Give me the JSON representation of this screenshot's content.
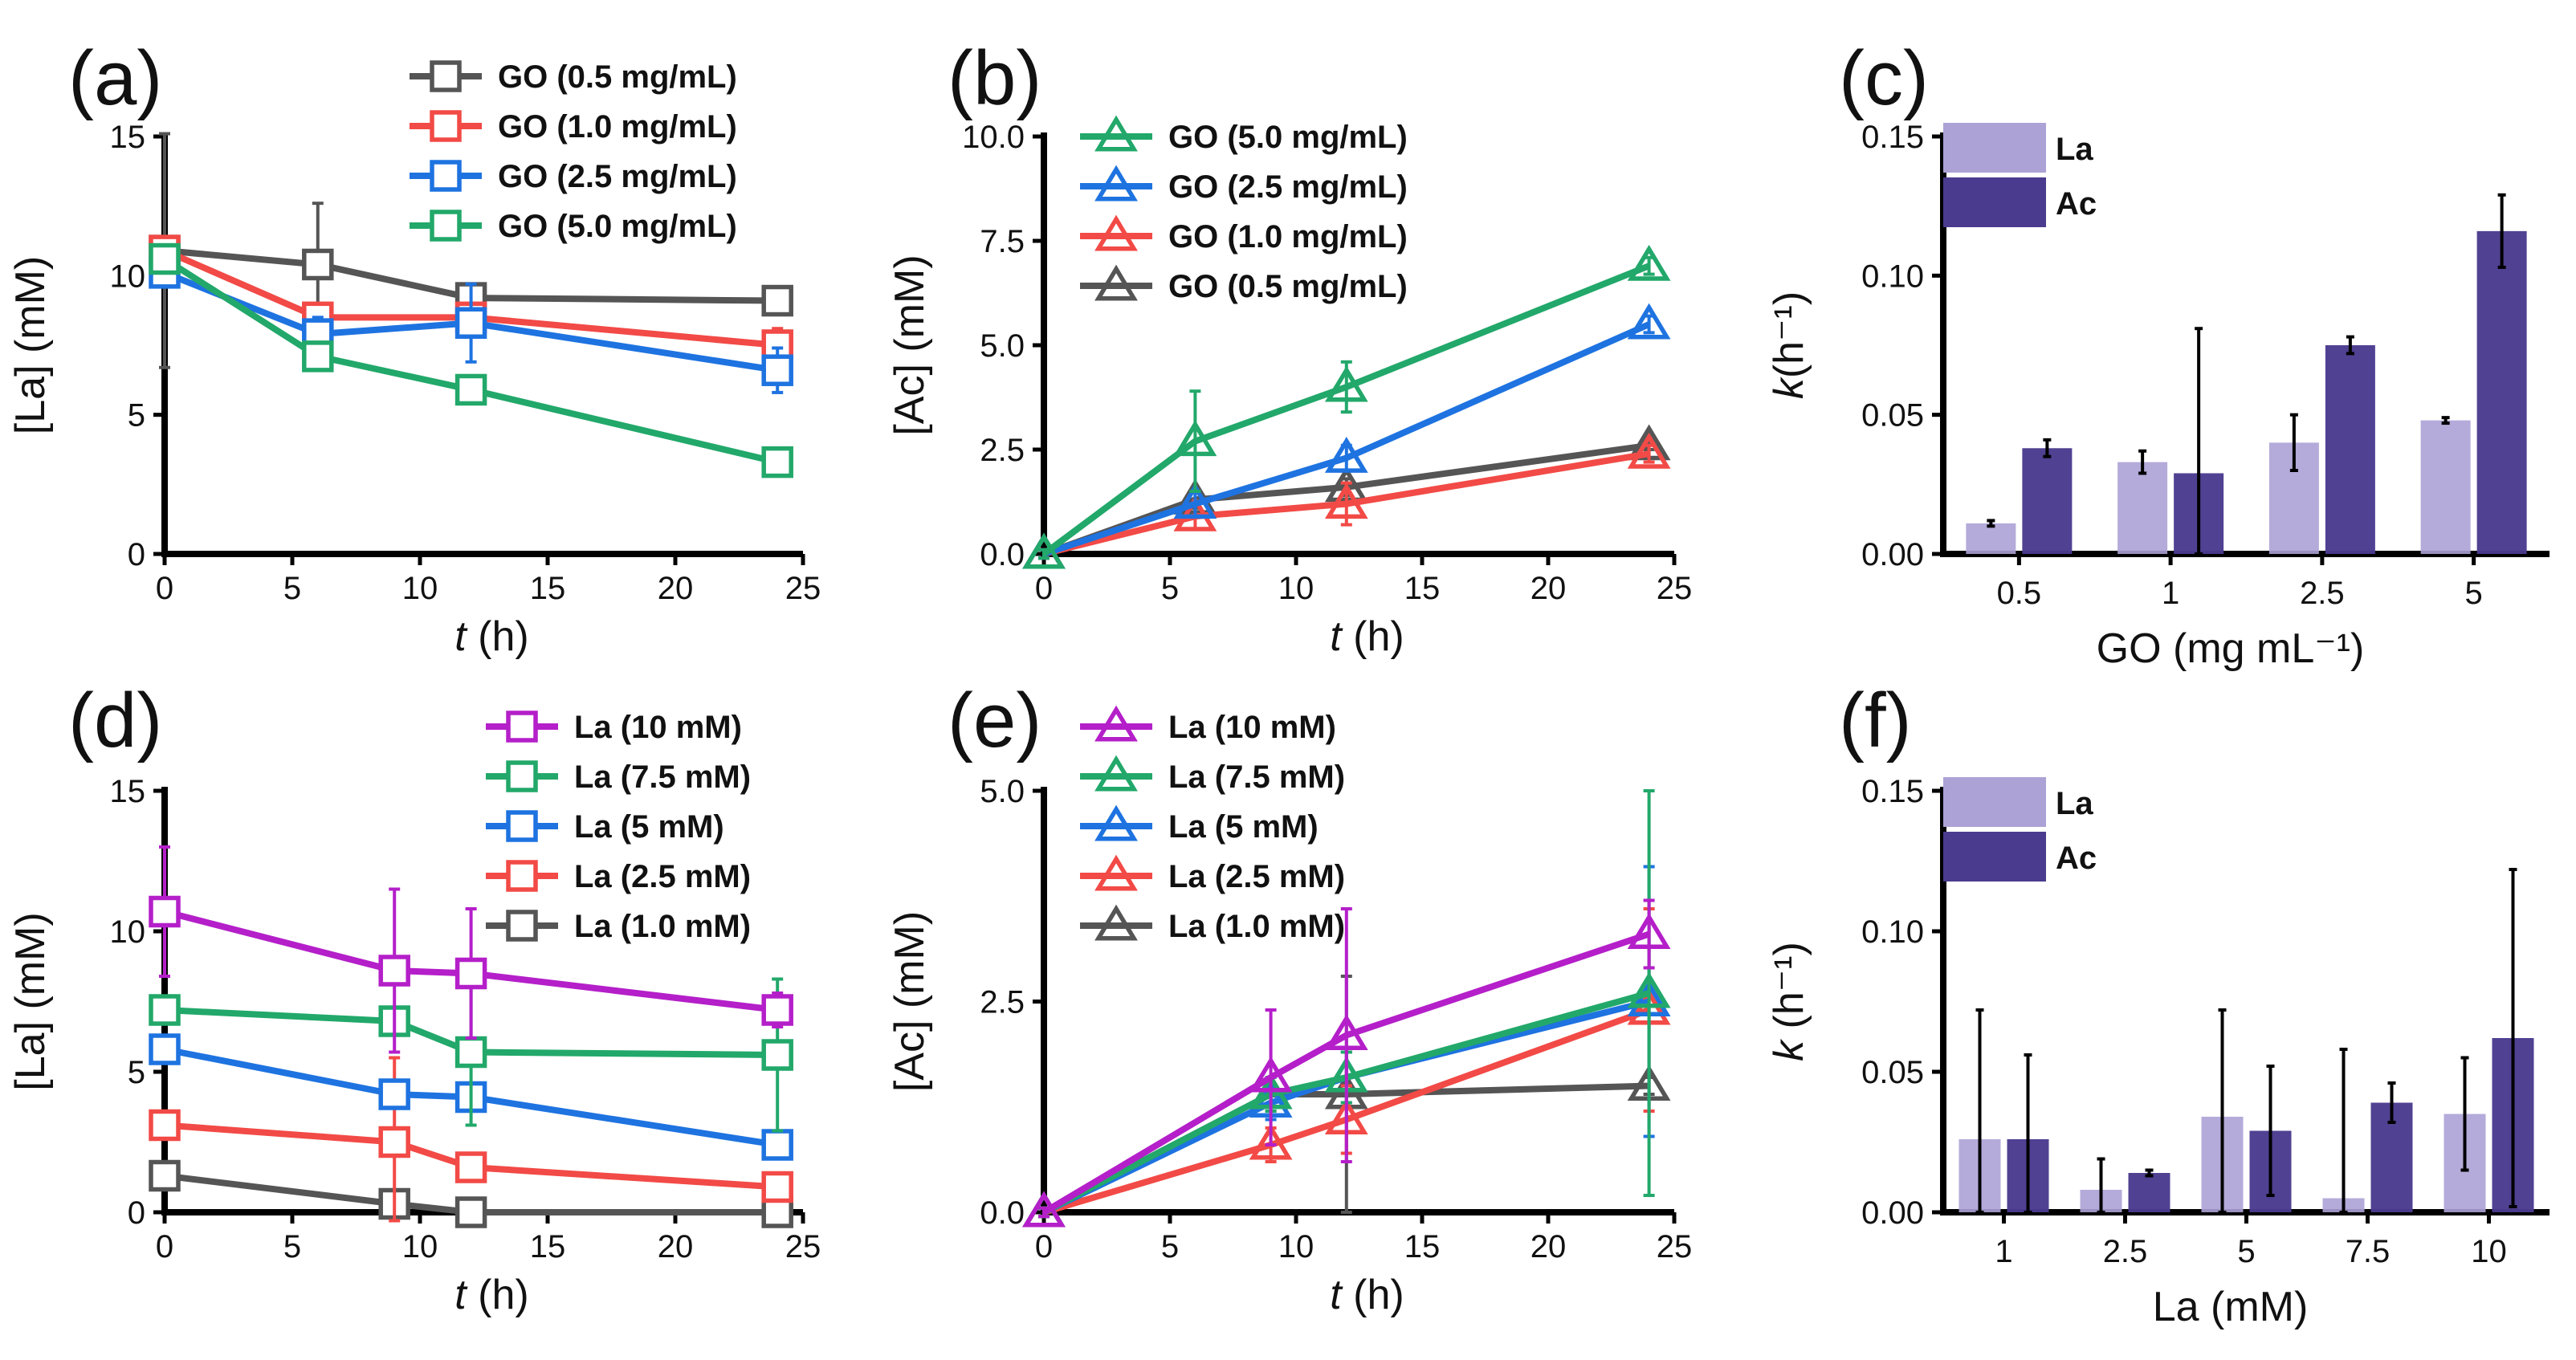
{
  "colors": {
    "gray": "#555555",
    "red": "#F24A46",
    "blue": "#1E73E0",
    "green": "#22A86A",
    "purple": "#B41FC9",
    "la_bar": "#ADA2D6",
    "ac_bar": "#4B3B8E"
  },
  "chart_data": [
    {
      "type": "line",
      "panel": "(a)",
      "marker": "square",
      "xlabel_italic": "t",
      "xlabel_rest": " (h)",
      "ylabel": "[La] (mM)",
      "xlim": [
        0,
        25
      ],
      "ylim": [
        0,
        15
      ],
      "xticks": [
        0,
        5,
        10,
        15,
        20,
        25
      ],
      "yticks": [
        0,
        5,
        10,
        15
      ],
      "ytick_labels": [
        "0",
        "5",
        "10",
        "15"
      ],
      "legend_position": "top-right",
      "x": [
        0,
        6,
        12,
        24
      ],
      "series": [
        {
          "name": "GO (0.5 mg/mL)",
          "color": "gray",
          "values": [
            10.9,
            10.4,
            9.2,
            9.1
          ],
          "errors": [
            4.2,
            2.2,
            0.2,
            0.2
          ]
        },
        {
          "name": "GO (1.0 mg/mL)",
          "color": "red",
          "values": [
            10.9,
            8.5,
            8.5,
            7.5
          ],
          "errors": [
            0.3,
            0.3,
            0.5,
            0.6
          ]
        },
        {
          "name": "GO (2.5 mg/mL)",
          "color": "blue",
          "values": [
            10.1,
            7.9,
            8.3,
            6.6
          ],
          "errors": [
            0.4,
            0.6,
            1.4,
            0.8
          ]
        },
        {
          "name": "GO (5.0 mg/mL)",
          "color": "green",
          "values": [
            10.6,
            7.1,
            5.9,
            3.3
          ],
          "errors": [
            0.3,
            0.3,
            0.3,
            0.2
          ]
        }
      ],
      "legend_order": [
        0,
        1,
        2,
        3
      ]
    },
    {
      "type": "line",
      "panel": "(b)",
      "marker": "triangle",
      "xlabel_italic": "t",
      "xlabel_rest": " (h)",
      "ylabel": "[Ac] (mM)",
      "xlim": [
        0,
        25
      ],
      "ylim": [
        0,
        10
      ],
      "xticks": [
        0,
        5,
        10,
        15,
        20,
        25
      ],
      "yticks": [
        0,
        2.5,
        5,
        7.5,
        10
      ],
      "ytick_labels": [
        "0.0",
        "2.5",
        "5.0",
        "7.5",
        "10.0"
      ],
      "legend_position": "top-left",
      "x": [
        0,
        6,
        12,
        24
      ],
      "series": [
        {
          "name": "GO (0.5 mg/mL)",
          "color": "gray",
          "values": [
            0,
            1.3,
            1.6,
            2.6
          ],
          "errors": [
            0.1,
            0.2,
            0.2,
            0.1
          ]
        },
        {
          "name": "GO (1.0 mg/mL)",
          "color": "red",
          "values": [
            0,
            0.9,
            1.2,
            2.4
          ],
          "errors": [
            0.1,
            0.3,
            0.5,
            0.2
          ]
        },
        {
          "name": "GO (2.5 mg/mL)",
          "color": "blue",
          "values": [
            0,
            1.2,
            2.3,
            5.5
          ],
          "errors": [
            0.1,
            0.3,
            0.3,
            0.2
          ]
        },
        {
          "name": "GO (5.0 mg/mL)",
          "color": "green",
          "values": [
            0,
            2.7,
            4.0,
            6.9
          ],
          "errors": [
            0.1,
            1.2,
            0.6,
            0.2
          ]
        }
      ],
      "legend_order": [
        3,
        2,
        1,
        0
      ]
    },
    {
      "type": "bar",
      "panel": "(c)",
      "xlabel": "GO (mg mL⁻¹)",
      "ylabel_italic": "k",
      "ylabel_rest": "(h⁻¹)",
      "ylim": [
        0,
        0.15
      ],
      "yticks": [
        0,
        0.05,
        0.1,
        0.15
      ],
      "ytick_labels": [
        "0.00",
        "0.05",
        "0.10",
        "0.15"
      ],
      "legend_position": "top-left",
      "categories": [
        "0.5",
        "1",
        "2.5",
        "5"
      ],
      "series": [
        {
          "name": "La",
          "color": "la_bar",
          "values": [
            0.011,
            0.033,
            0.04,
            0.048
          ],
          "errors": [
            0.001,
            0.004,
            0.01,
            0.001
          ]
        },
        {
          "name": "Ac",
          "color": "ac_bar",
          "values": [
            0.038,
            0.029,
            0.075,
            0.116
          ],
          "errors": [
            0.003,
            0.052,
            0.003,
            0.013
          ]
        }
      ]
    },
    {
      "type": "line",
      "panel": "(d)",
      "marker": "square",
      "xlabel_italic": "t",
      "xlabel_rest": " (h)",
      "ylabel": "[La] (mM)",
      "xlim": [
        0,
        25
      ],
      "ylim": [
        0,
        15
      ],
      "xticks": [
        0,
        5,
        10,
        15,
        20,
        25
      ],
      "yticks": [
        0,
        5,
        10,
        15
      ],
      "ytick_labels": [
        "0",
        "5",
        "10",
        "15"
      ],
      "legend_position": "top-right",
      "x": [
        0,
        9,
        12,
        24
      ],
      "series": [
        {
          "name": "La (1.0 mM)",
          "color": "gray",
          "values": [
            1.3,
            0.3,
            0,
            0
          ],
          "errors": [
            0.2,
            0.2,
            0.1,
            0.1
          ]
        },
        {
          "name": "La (2.5 mM)",
          "color": "red",
          "values": [
            3.1,
            2.5,
            1.6,
            0.9
          ],
          "errors": [
            0.3,
            3.0,
            0.2,
            0.3
          ]
        },
        {
          "name": "La (5 mM)",
          "color": "blue",
          "values": [
            5.8,
            4.2,
            4.1,
            2.4
          ],
          "errors": [
            0.3,
            0.5,
            0.4,
            0.3
          ]
        },
        {
          "name": "La (7.5 mM)",
          "color": "green",
          "values": [
            7.2,
            6.8,
            5.7,
            5.6
          ],
          "errors": [
            0.3,
            0.5,
            2.6,
            2.7
          ]
        },
        {
          "name": "La (10 mM)",
          "color": "purple",
          "values": [
            10.7,
            8.6,
            8.5,
            7.2
          ],
          "errors": [
            2.3,
            2.9,
            2.3,
            0.6
          ]
        }
      ],
      "legend_order": [
        4,
        3,
        2,
        1,
        0
      ]
    },
    {
      "type": "line",
      "panel": "(e)",
      "marker": "triangle",
      "xlabel_italic": "t",
      "xlabel_rest": " (h)",
      "ylabel": "[Ac] (mM)",
      "xlim": [
        0,
        25
      ],
      "ylim": [
        0,
        5
      ],
      "xticks": [
        0,
        5,
        10,
        15,
        20,
        25
      ],
      "yticks": [
        0,
        2.5,
        5
      ],
      "ytick_labels": [
        "0.0",
        "2.5",
        "5.0"
      ],
      "legend_position": "top-left",
      "x": [
        0,
        9,
        12,
        24
      ],
      "series": [
        {
          "name": "La (1.0 mM)",
          "color": "gray",
          "values": [
            0,
            1.4,
            1.4,
            1.5
          ],
          "errors": [
            0.05,
            0.2,
            1.4,
            0.1
          ]
        },
        {
          "name": "La (2.5 mM)",
          "color": "red",
          "values": [
            0,
            0.8,
            1.1,
            2.4
          ],
          "errors": [
            0.05,
            0.2,
            0.4,
            1.2
          ]
        },
        {
          "name": "La (5 mM)",
          "color": "blue",
          "values": [
            0,
            1.3,
            1.6,
            2.5
          ],
          "errors": [
            0.05,
            0.2,
            0.3,
            1.6
          ]
        },
        {
          "name": "La (7.5 mM)",
          "color": "green",
          "values": [
            0,
            1.4,
            1.6,
            2.6
          ],
          "errors": [
            0.05,
            0.2,
            0.3,
            2.4
          ]
        },
        {
          "name": "La (10 mM)",
          "color": "purple",
          "values": [
            0,
            1.6,
            2.1,
            3.3
          ],
          "errors": [
            0.05,
            0.8,
            1.5,
            0.4
          ]
        }
      ],
      "legend_order": [
        4,
        3,
        2,
        1,
        0
      ]
    },
    {
      "type": "bar",
      "panel": "(f)",
      "xlabel": "La (mM)",
      "ylabel_italic": "k",
      "ylabel_rest": " (h⁻¹)",
      "ylim": [
        0,
        0.15
      ],
      "yticks": [
        0,
        0.05,
        0.1,
        0.15
      ],
      "ytick_labels": [
        "0.00",
        "0.05",
        "0.10",
        "0.15"
      ],
      "legend_position": "top-left",
      "categories": [
        "1",
        "2.5",
        "5",
        "7.5",
        "10"
      ],
      "series": [
        {
          "name": "La",
          "color": "la_bar",
          "values": [
            0.026,
            0.008,
            0.034,
            0.005,
            0.035
          ],
          "errors": [
            0.046,
            0.011,
            0.038,
            0.053,
            0.02
          ]
        },
        {
          "name": "Ac",
          "color": "ac_bar",
          "values": [
            0.026,
            0.014,
            0.029,
            0.039,
            0.062
          ],
          "errors": [
            0.03,
            0.001,
            0.023,
            0.007,
            0.06
          ]
        }
      ]
    }
  ]
}
